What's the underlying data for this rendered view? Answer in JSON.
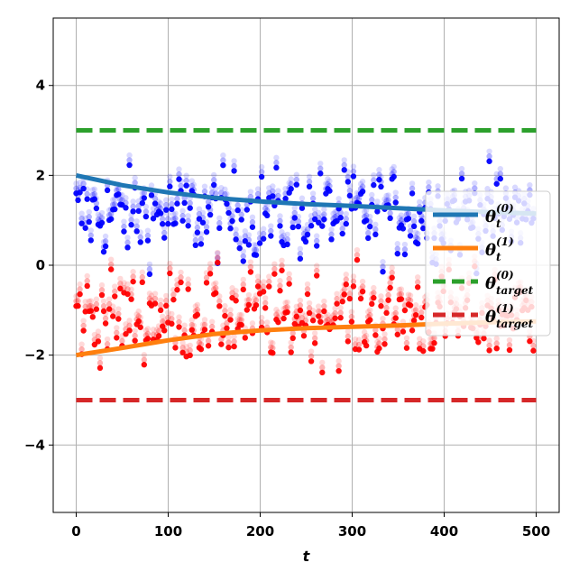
{
  "chart_data": {
    "type": "scatter",
    "xlabel": "t",
    "ylabel": "",
    "xlim": [
      -25,
      525
    ],
    "ylim": [
      -5.5,
      5.5
    ],
    "xticks": [
      0,
      100,
      200,
      300,
      400,
      500
    ],
    "yticks": [
      -4,
      -2,
      0,
      2,
      4
    ],
    "grid": true,
    "legend_position": "center-right",
    "colors": {
      "theta0_line": "#1f77b4",
      "theta1_line": "#ff7f0e",
      "target0": "#2ca02c",
      "target1": "#d62728",
      "scatter0": "#0000ff",
      "scatter1": "#ff0000"
    },
    "lines": {
      "theta0": {
        "x": [
          0,
          50,
          100,
          150,
          200,
          250,
          300,
          350,
          400,
          450,
          500
        ],
        "y": [
          2.0,
          1.78,
          1.62,
          1.5,
          1.42,
          1.36,
          1.32,
          1.27,
          1.22,
          1.18,
          1.15
        ]
      },
      "theta1": {
        "x": [
          0,
          50,
          100,
          150,
          200,
          250,
          300,
          350,
          400,
          450,
          500
        ],
        "y": [
          -2.0,
          -1.84,
          -1.67,
          -1.53,
          -1.45,
          -1.4,
          -1.37,
          -1.34,
          -1.3,
          -1.27,
          -1.25
        ]
      },
      "target0": {
        "x": [
          0,
          500
        ],
        "y": [
          3,
          3
        ]
      },
      "target1": {
        "x": [
          0,
          500
        ],
        "y": [
          -3,
          -3
        ]
      }
    },
    "scatter": {
      "series0": {
        "x0": 0,
        "x1": 497,
        "count": 250,
        "center": 1.1,
        "spread": 0.5
      },
      "series1": {
        "x0": 0,
        "x1": 497,
        "count": 250,
        "center": -1.15,
        "spread": 0.5
      }
    },
    "legend": [
      {
        "key": "theta0",
        "base": "θ",
        "sub": "t",
        "sup": "(0)"
      },
      {
        "key": "theta1",
        "base": "θ",
        "sub": "t",
        "sup": "(1)"
      },
      {
        "key": "target0",
        "base": "θ",
        "sub": "target",
        "sup": "(0)"
      },
      {
        "key": "target1",
        "base": "θ",
        "sub": "target",
        "sup": "(1)"
      }
    ]
  }
}
